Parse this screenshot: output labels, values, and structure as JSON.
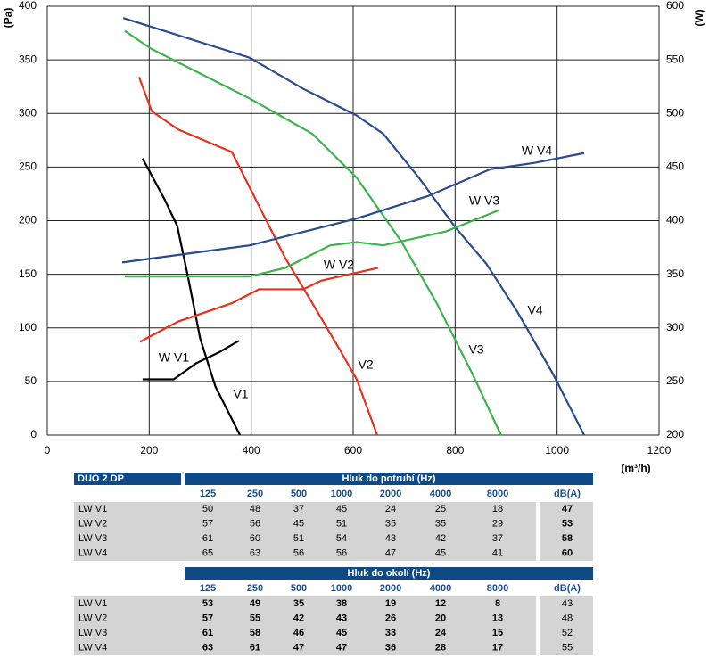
{
  "chart_data": {
    "type": "line",
    "ylabel": "(Pa)",
    "y2label": "(W)",
    "xlabel": "(m³/h)",
    "xlim": [
      0,
      1200
    ],
    "xticks": [
      0,
      200,
      400,
      600,
      800,
      1000,
      1200
    ],
    "ylim": [
      0,
      400
    ],
    "yticks": [
      0,
      50,
      100,
      150,
      200,
      250,
      300,
      350,
      400
    ],
    "y2lim": [
      200,
      600
    ],
    "y2ticks": [
      200,
      250,
      300,
      350,
      400,
      450,
      500,
      550,
      600
    ],
    "grid": true,
    "series": [
      {
        "name": "V1",
        "color": "#000000",
        "x": [
          187,
          230,
          255,
          275,
          300,
          330,
          378
        ],
        "values": [
          258,
          220,
          195,
          150,
          90,
          45,
          0
        ]
      },
      {
        "name": "V2",
        "color": "#e8321e",
        "x": [
          180,
          205,
          257,
          362,
          397,
          467,
          520,
          572,
          607,
          647
        ],
        "values": [
          334,
          302,
          285,
          264,
          231,
          165,
          123,
          81,
          52,
          0
        ]
      },
      {
        "name": "V3",
        "color": "#3cb44b",
        "x": [
          152,
          205,
          397,
          520,
          607,
          694,
          764,
          834,
          890
        ],
        "values": [
          377,
          360,
          314,
          281,
          240,
          181,
          123,
          57,
          0
        ]
      },
      {
        "name": "V4",
        "color": "#2a4b8d",
        "x": [
          149,
          397,
          502,
          607,
          659,
          729,
          800,
          861,
          922,
          992,
          1053
        ],
        "values": [
          389,
          352,
          323,
          298,
          281,
          240,
          194,
          160,
          115,
          57,
          0
        ]
      },
      {
        "name": "W V1",
        "color": "#000000",
        "axis": "y2",
        "x": [
          187,
          248,
          292,
          336,
          376
        ],
        "values": [
          252,
          252,
          267,
          277,
          288
        ]
      },
      {
        "name": "W V2",
        "color": "#e8321e",
        "axis": "y2",
        "x": [
          182,
          257,
          362,
          415,
          502,
          537,
          649
        ],
        "values": [
          287,
          306,
          323,
          336,
          336,
          344,
          356
        ]
      },
      {
        "name": "W V3",
        "color": "#3cb44b",
        "axis": "y2",
        "x": [
          152,
          397,
          467,
          555,
          607,
          659,
          782,
          887
        ],
        "values": [
          348,
          348,
          356,
          377,
          380,
          377,
          390,
          410
        ]
      },
      {
        "name": "W V4",
        "color": "#2a4b8d",
        "axis": "y2",
        "x": [
          147,
          397,
          607,
          747,
          869,
          957,
          1053
        ],
        "values": [
          361,
          377,
          402,
          423,
          448,
          454,
          463
        ]
      }
    ]
  },
  "tables": [
    {
      "corner": "DUO 2 DP",
      "title": "Hluk do potrubí (Hz)",
      "columns": [
        "125",
        "250",
        "500",
        "1000",
        "2000",
        "4000",
        "8000",
        "dB(A)"
      ],
      "rows": [
        [
          "LW V1",
          "50",
          "48",
          "37",
          "45",
          "24",
          "25",
          "18",
          "47"
        ],
        [
          "LW V2",
          "57",
          "56",
          "45",
          "51",
          "35",
          "35",
          "29",
          "53"
        ],
        [
          "LW V3",
          "61",
          "60",
          "51",
          "54",
          "43",
          "42",
          "37",
          "58"
        ],
        [
          "LW V4",
          "65",
          "63",
          "56",
          "56",
          "47",
          "45",
          "41",
          "60"
        ]
      ]
    },
    {
      "title": "Hluk do okolí (Hz)",
      "columns": [
        "125",
        "250",
        "500",
        "1000",
        "2000",
        "4000",
        "8000",
        "dB(A)"
      ],
      "rows": [
        [
          "LW V1",
          "53",
          "49",
          "35",
          "38",
          "19",
          "12",
          "8",
          "43"
        ],
        [
          "LW V2",
          "57",
          "55",
          "42",
          "43",
          "26",
          "20",
          "13",
          "48"
        ],
        [
          "LW V3",
          "61",
          "58",
          "46",
          "45",
          "33",
          "24",
          "15",
          "52"
        ],
        [
          "LW V4",
          "63",
          "61",
          "47",
          "47",
          "36",
          "28",
          "17",
          "55"
        ]
      ]
    }
  ]
}
